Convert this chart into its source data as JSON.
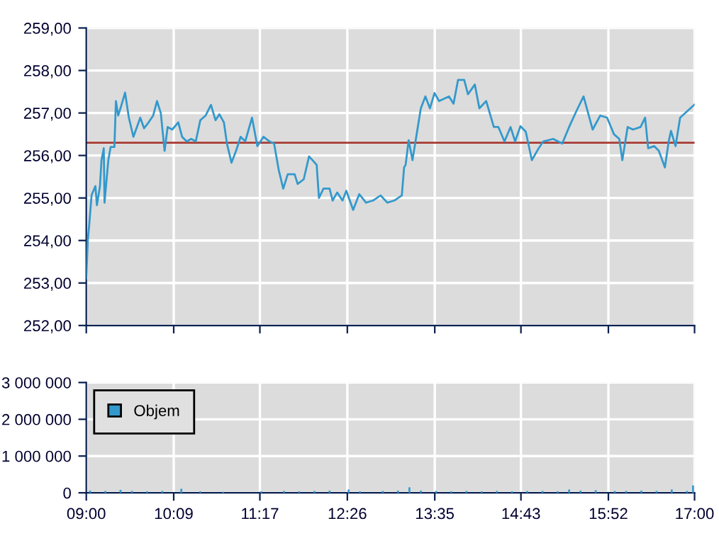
{
  "chart_data": [
    {
      "type": "line",
      "xlim": [
        9,
        17
      ],
      "xticks": [
        {
          "value": 9,
          "label": null
        },
        {
          "value": 10.15,
          "label": null
        },
        {
          "value": 11.2833,
          "label": null
        },
        {
          "value": 12.4333,
          "label": null
        },
        {
          "value": 13.5833,
          "label": null
        },
        {
          "value": 14.7167,
          "label": null
        },
        {
          "value": 15.8667,
          "label": null
        },
        {
          "value": 17,
          "label": null
        }
      ],
      "ylim": [
        252,
        259
      ],
      "yticks": [
        {
          "value": 252,
          "label": "252,00"
        },
        {
          "value": 253,
          "label": "253,00"
        },
        {
          "value": 254,
          "label": "254,00"
        },
        {
          "value": 255,
          "label": "255,00"
        },
        {
          "value": 256,
          "label": "256,00"
        },
        {
          "value": 257,
          "label": "257,00"
        },
        {
          "value": 258,
          "label": "258,00"
        },
        {
          "value": 259,
          "label": "259,00"
        }
      ],
      "grid": true,
      "tick_labels": "y",
      "legend": false,
      "ref_lines": [
        {
          "axis": "y",
          "value": 256.3,
          "color": "#a83a32"
        }
      ],
      "series": [
        {
          "color": "#3399cc",
          "x": [
            9.0,
            9.02,
            9.04,
            9.07,
            9.12,
            9.14,
            9.18,
            9.2,
            9.23,
            9.24,
            9.29,
            9.32,
            9.37,
            9.39,
            9.42,
            9.46,
            9.51,
            9.56,
            9.62,
            9.67,
            9.71,
            9.76,
            9.82,
            9.88,
            9.93,
            9.98,
            10.03,
            10.07,
            10.13,
            10.21,
            10.26,
            10.32,
            10.38,
            10.44,
            10.5,
            10.57,
            10.64,
            10.7,
            10.75,
            10.81,
            10.85,
            10.91,
            10.97,
            11.03,
            11.09,
            11.18,
            11.25,
            11.33,
            11.41,
            11.47,
            11.53,
            11.59,
            11.65,
            11.74,
            11.78,
            11.86,
            11.93,
            12.03,
            12.06,
            12.12,
            12.2,
            12.24,
            12.3,
            12.37,
            12.42,
            12.51,
            12.59,
            12.68,
            12.77,
            12.87,
            12.96,
            13.05,
            13.15,
            13.18,
            13.2,
            13.24,
            13.29,
            13.33,
            13.4,
            13.46,
            13.52,
            13.58,
            13.64,
            13.77,
            13.83,
            13.89,
            13.97,
            14.02,
            14.11,
            14.17,
            14.26,
            14.36,
            14.42,
            14.5,
            14.58,
            14.64,
            14.71,
            14.78,
            14.86,
            14.95,
            15.01,
            15.14,
            15.26,
            15.35,
            15.45,
            15.54,
            15.6,
            15.66,
            15.76,
            15.85,
            15.94,
            16.01,
            16.05,
            16.12,
            16.19,
            16.29,
            16.35,
            16.39,
            16.47,
            16.53,
            16.61,
            16.66,
            16.69,
            16.75,
            16.81,
            17.0
          ],
          "values": [
            253.11,
            254.0,
            254.4,
            255.07,
            255.28,
            254.83,
            255.28,
            255.89,
            256.17,
            254.89,
            255.89,
            256.2,
            256.2,
            257.28,
            256.94,
            257.17,
            257.48,
            256.89,
            256.44,
            256.69,
            256.89,
            256.64,
            256.78,
            256.94,
            257.28,
            257.0,
            256.11,
            256.67,
            256.61,
            256.78,
            256.44,
            256.33,
            256.39,
            256.33,
            256.83,
            256.94,
            257.19,
            256.83,
            256.97,
            256.78,
            256.28,
            255.83,
            256.11,
            256.44,
            256.33,
            256.89,
            256.22,
            256.44,
            256.33,
            256.28,
            255.67,
            255.22,
            255.56,
            255.56,
            255.33,
            255.44,
            255.98,
            255.78,
            255.0,
            255.22,
            255.22,
            254.94,
            255.13,
            254.94,
            255.17,
            254.72,
            255.09,
            254.89,
            254.94,
            255.06,
            254.89,
            254.94,
            255.06,
            255.72,
            255.78,
            256.36,
            255.89,
            256.33,
            257.11,
            257.39,
            257.11,
            257.47,
            257.28,
            257.39,
            257.22,
            257.78,
            257.78,
            257.44,
            257.67,
            257.11,
            257.28,
            256.67,
            256.67,
            256.33,
            256.67,
            256.33,
            256.69,
            256.56,
            255.89,
            256.17,
            256.33,
            256.39,
            256.28,
            256.67,
            257.06,
            257.39,
            257.0,
            256.61,
            256.94,
            256.89,
            256.5,
            256.39,
            255.89,
            256.67,
            256.61,
            256.67,
            256.89,
            256.17,
            256.22,
            256.11,
            255.72,
            256.33,
            256.58,
            256.22,
            256.89,
            257.2
          ]
        }
      ]
    },
    {
      "type": "bar",
      "xlim": [
        9,
        17
      ],
      "xticks": [
        {
          "value": 9,
          "label": "09:00"
        },
        {
          "value": 10.15,
          "label": "10:09"
        },
        {
          "value": 11.2833,
          "label": "11:17"
        },
        {
          "value": 12.4333,
          "label": "12:26"
        },
        {
          "value": 13.5833,
          "label": "13:35"
        },
        {
          "value": 14.7167,
          "label": "14:43"
        },
        {
          "value": 15.8667,
          "label": "15:52"
        },
        {
          "value": 17,
          "label": "17:00"
        }
      ],
      "ylim": [
        0,
        3000000
      ],
      "yticks": [
        {
          "value": 0,
          "label": "0"
        },
        {
          "value": 1000000,
          "label": "1 000 000"
        },
        {
          "value": 2000000,
          "label": "2 000 000"
        },
        {
          "value": 3000000,
          "label": "3 000 000"
        }
      ],
      "grid": true,
      "legend": "top left",
      "series": [
        {
          "name": "Objem",
          "color": "#3399cc",
          "x": [
            9.05,
            9.25,
            9.45,
            9.6,
            9.8,
            10.0,
            10.25,
            10.5,
            10.8,
            11.3,
            11.6,
            11.8,
            12.0,
            12.2,
            12.45,
            12.6,
            12.9,
            13.1,
            13.25,
            13.4,
            13.6,
            13.8,
            14.0,
            14.2,
            14.4,
            14.6,
            14.8,
            15.0,
            15.2,
            15.35,
            15.5,
            15.7,
            15.95,
            16.1,
            16.3,
            16.5,
            16.7,
            16.9,
            16.98
          ],
          "values": [
            60000,
            50000,
            80000,
            50000,
            40000,
            50000,
            110000,
            40000,
            30000,
            40000,
            50000,
            40000,
            50000,
            60000,
            90000,
            40000,
            50000,
            60000,
            150000,
            60000,
            50000,
            40000,
            50000,
            40000,
            50000,
            40000,
            50000,
            50000,
            40000,
            90000,
            60000,
            70000,
            50000,
            50000,
            60000,
            50000,
            90000,
            50000,
            200000
          ]
        }
      ]
    }
  ]
}
